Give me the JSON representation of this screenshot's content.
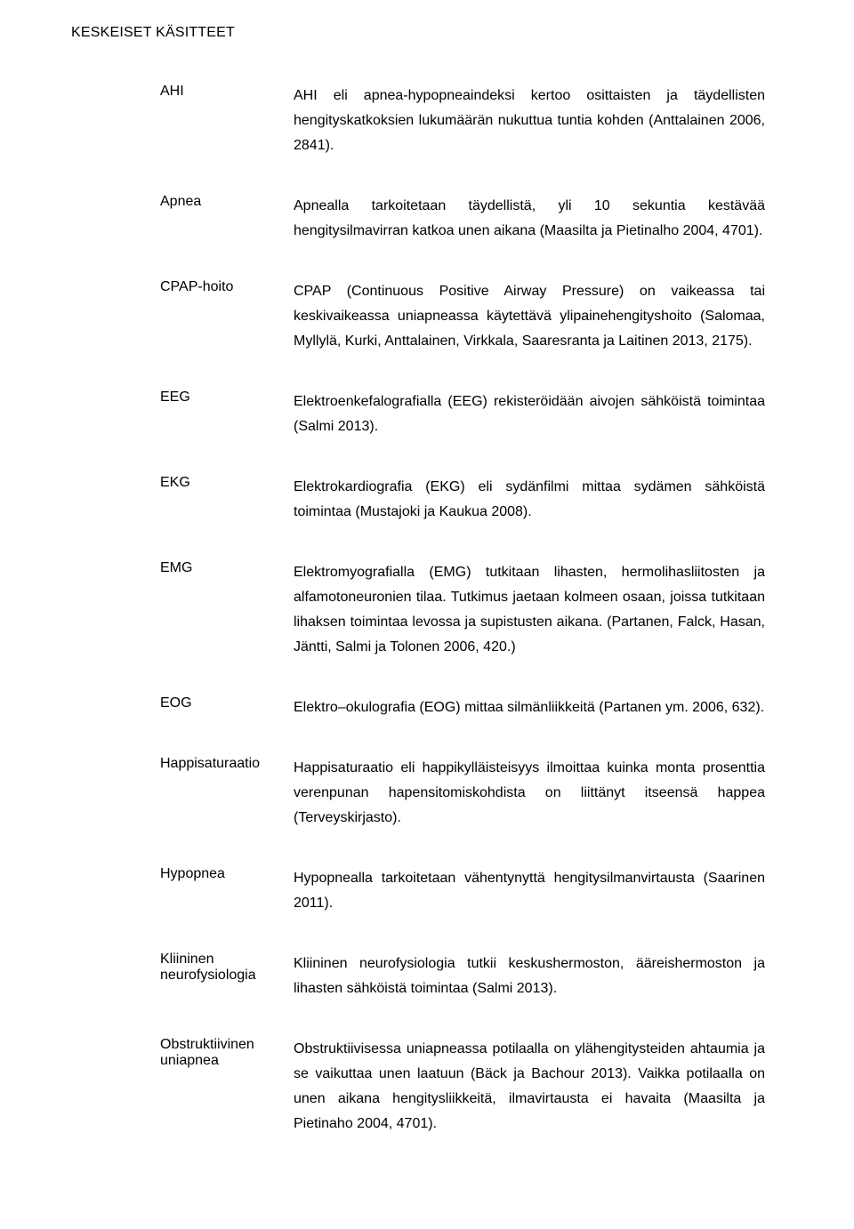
{
  "title": "KESKEISET KÄSITTEET",
  "entries": [
    {
      "term": "AHI",
      "definition": "AHI eli apnea-hypopneaindeksi kertoo osittaisten ja täydellisten hengityskatkoksien lukumäärän nukuttua tuntia kohden (Anttalainen 2006, 2841)."
    },
    {
      "term": "Apnea",
      "definition": "Apnealla tarkoitetaan täydellistä, yli 10 sekuntia kestävää hengitysilmavirran katkoa unen aikana (Maasilta ja Pietinalho 2004, 4701)."
    },
    {
      "term": "CPAP-hoito",
      "definition": "CPAP (Continuous Positive Airway Pressure) on vaikeassa tai keskivaikeassa uniapneassa käytettävä ylipainehengityshoito (Salomaa, Myllylä, Kurki, Anttalainen, Virkkala, Saaresranta ja Laitinen 2013, 2175)."
    },
    {
      "term": "EEG",
      "definition": "Elektroenkefalografialla (EEG) rekisteröidään aivojen sähköistä toimintaa (Salmi 2013)."
    },
    {
      "term": "EKG",
      "definition": "Elektrokardiografia (EKG) eli sydänfilmi mittaa sydämen sähköistä toimintaa (Mustajoki ja Kaukua 2008)."
    },
    {
      "term": "EMG",
      "definition": "Elektromyografialla (EMG) tutkitaan lihasten, hermolihasliitosten ja alfamotoneuronien tilaa. Tutkimus jaetaan kolmeen osaan, joissa tutkitaan lihaksen toimintaa levossa ja supistusten aikana. (Partanen, Falck, Hasan, Jäntti, Salmi ja Tolonen 2006, 420.)"
    },
    {
      "term": "EOG",
      "definition": "Elektro–okulografia (EOG) mittaa silmänliikkeitä (Partanen ym. 2006, 632)."
    },
    {
      "term": "Happisaturaatio",
      "definition": "Happisaturaatio eli happikylläisteisyys ilmoittaa kuinka monta prosenttia verenpunan hapensitomiskohdista on liittänyt itseensä happea (Terveyskirjasto)."
    },
    {
      "term": "Hypopnea",
      "definition": "Hypopnealla tarkoitetaan vähentynyttä hengitysilmanvirtausta (Saarinen 2011)."
    },
    {
      "term": "Kliininen neurofysiologia",
      "definition": "Kliininen neurofysiologia tutkii keskushermoston, ääreishermoston ja lihasten sähköistä toimintaa (Salmi 2013)."
    },
    {
      "term": "Obstruktiivinen uniapnea",
      "definition": "Obstruktiivisessa uniapneassa potilaalla on ylähengitysteiden ahtaumia ja se vaikuttaa unen laatuun (Bäck ja Bachour 2013). Vaikka potilaalla on unen aikana hengitysliikkeitä, ilmavirtausta ei havaita (Maasilta ja Pietinaho 2004, 4701)."
    }
  ]
}
